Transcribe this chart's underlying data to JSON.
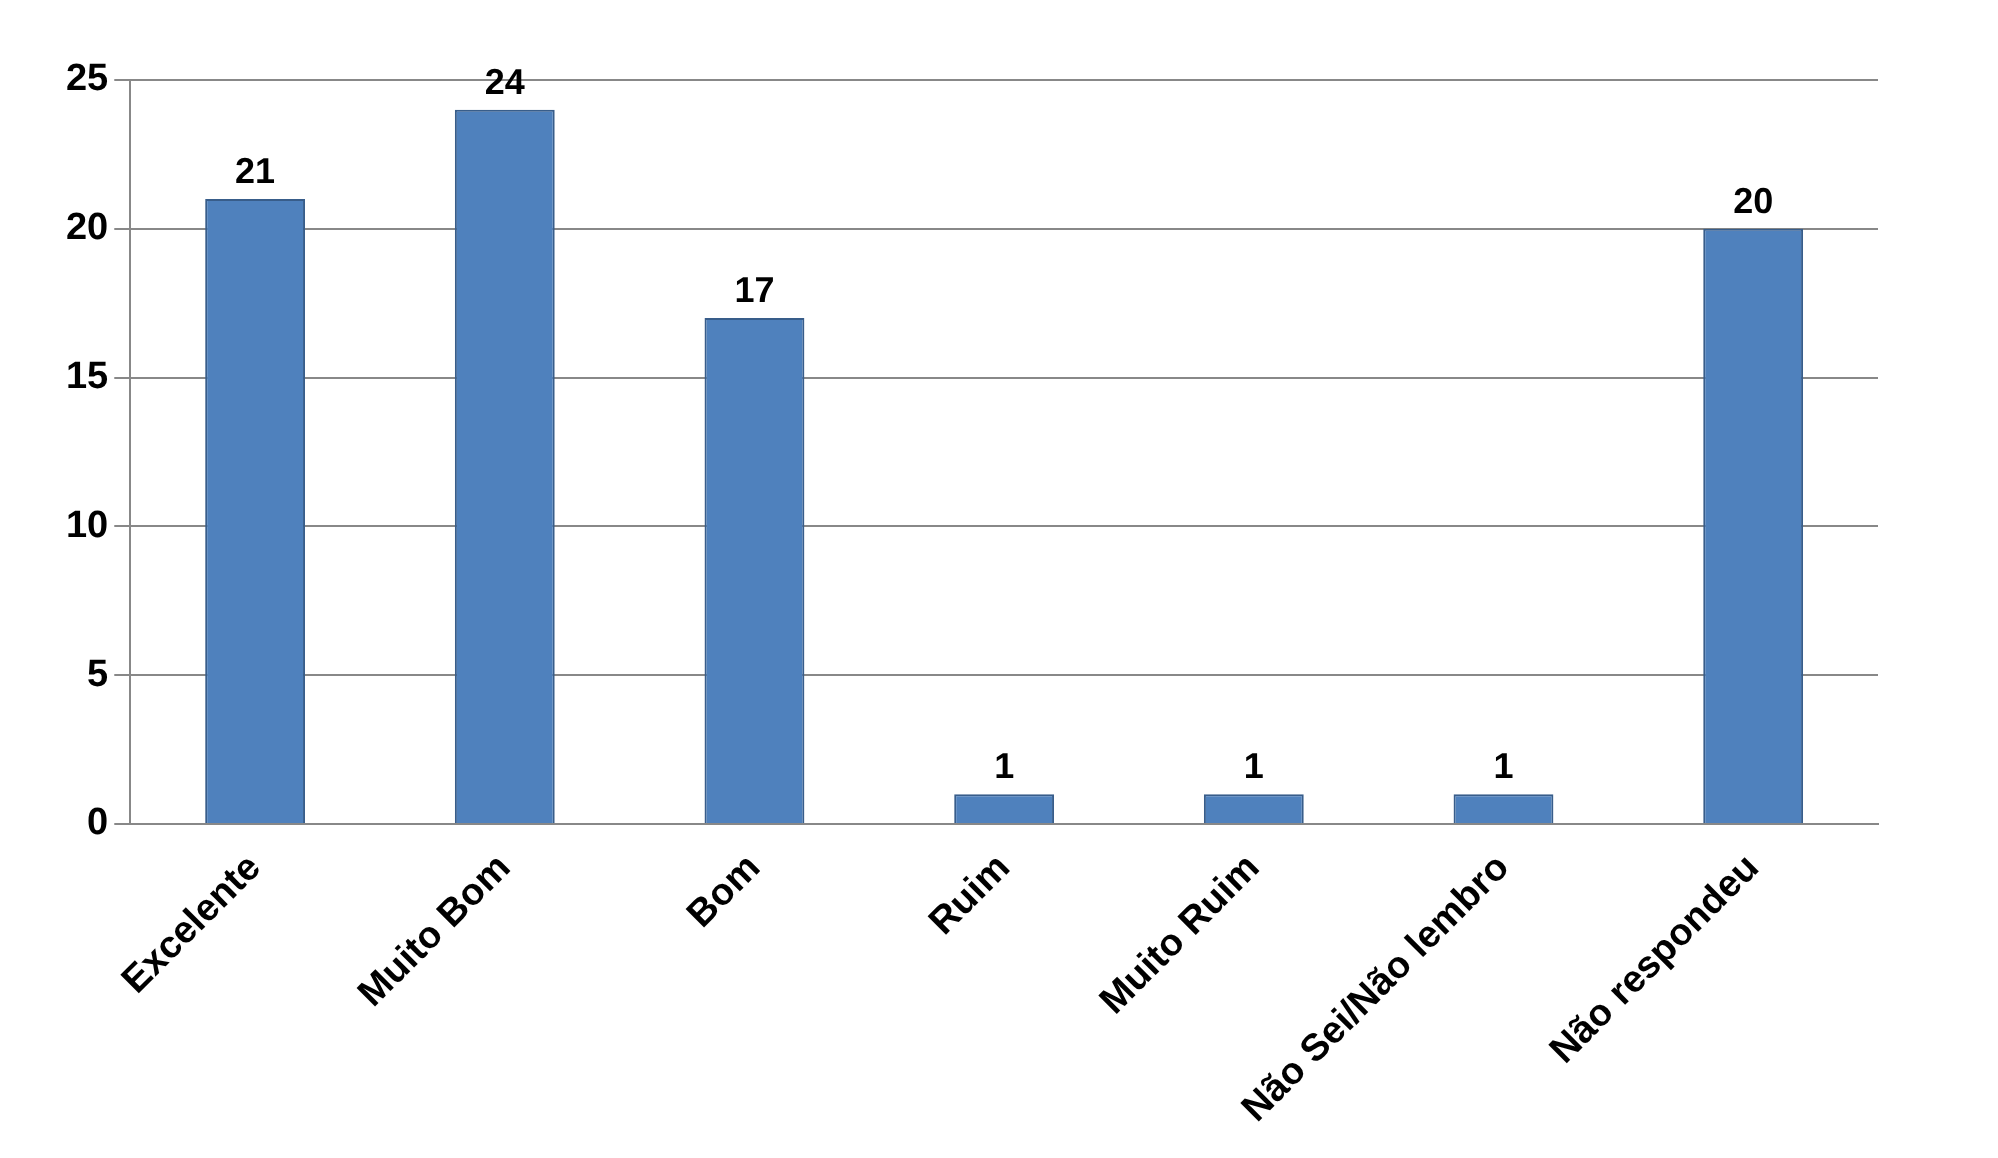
{
  "chart_data": {
    "type": "bar",
    "categories": [
      "Excelente",
      "Muito Bom",
      "Bom",
      "Ruim",
      "Muito Ruim",
      "Não Sei/Não lembro",
      "Não respondeu"
    ],
    "values": [
      21,
      24,
      17,
      1,
      1,
      1,
      20
    ],
    "color": "#4f81bd",
    "ylim": [
      0,
      25
    ],
    "yticks": [
      0,
      5,
      10,
      15,
      20,
      25
    ],
    "grid": "y",
    "data_labels": true
  }
}
